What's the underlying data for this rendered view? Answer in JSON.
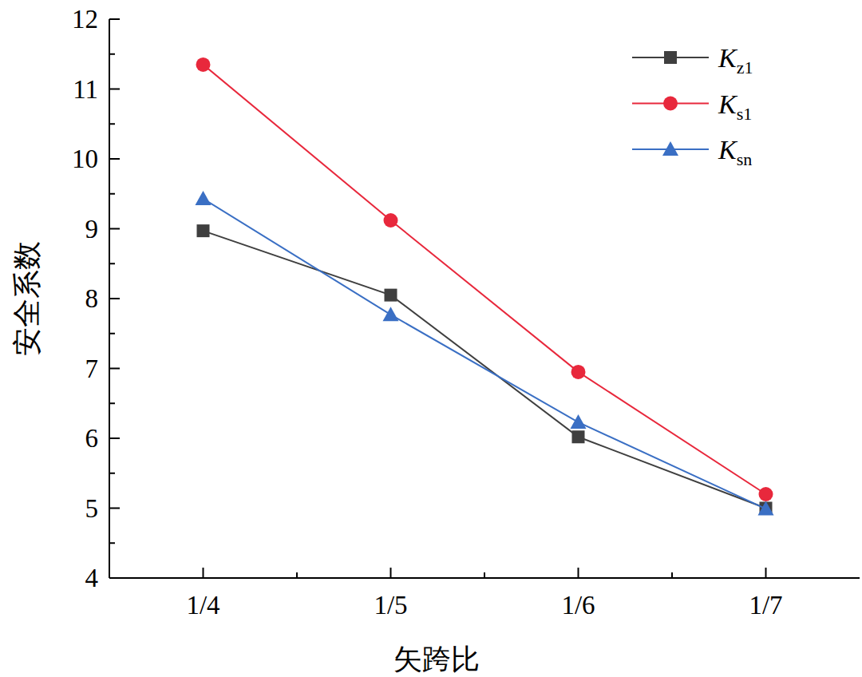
{
  "chart_data": {
    "type": "line",
    "x_label": "矢跨比",
    "y_label": "安全系数",
    "categories": [
      "1/4",
      "1/5",
      "1/6",
      "1/7"
    ],
    "series": [
      {
        "name": "Kz1",
        "color": "#3f3f3f",
        "marker": "square",
        "values": [
          8.97,
          8.05,
          6.02,
          5.0
        ]
      },
      {
        "name": "Ks1",
        "color": "#e8283c",
        "marker": "circle",
        "values": [
          11.35,
          9.12,
          6.95,
          5.2
        ]
      },
      {
        "name": "Ksn",
        "color": "#3a6fc4",
        "marker": "triangle",
        "values": [
          9.43,
          7.77,
          6.23,
          4.99
        ]
      }
    ],
    "ylim": [
      4,
      12
    ],
    "yticks": [
      4,
      5,
      6,
      7,
      8,
      9,
      10,
      11,
      12
    ],
    "grid": false,
    "legend": "upper right"
  }
}
